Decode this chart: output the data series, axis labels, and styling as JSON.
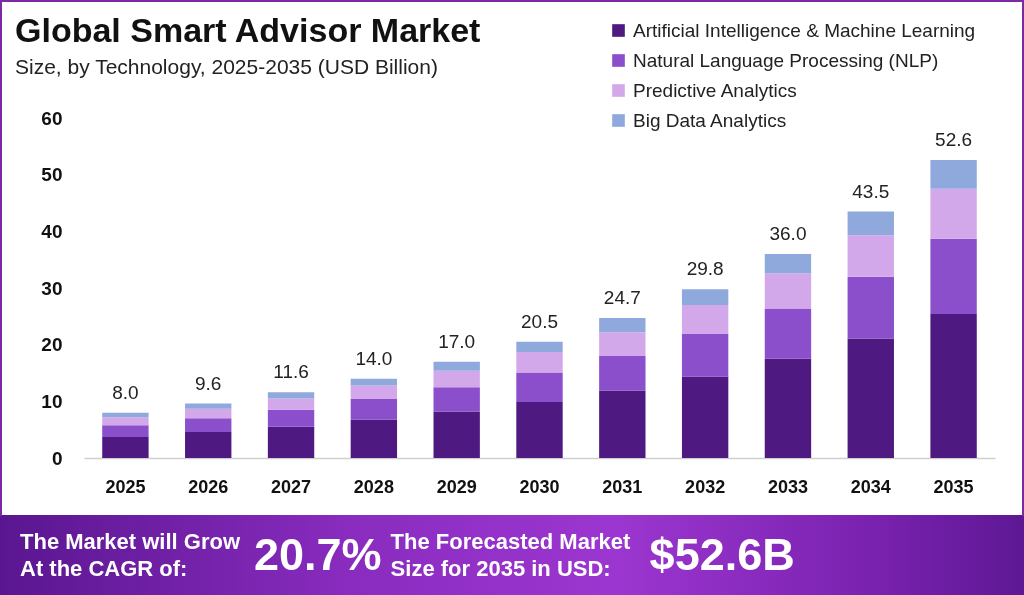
{
  "chart_data": {
    "type": "bar",
    "title": "Global Smart Advisor Market",
    "subtitle": "Size, by Technology, 2025-2035 (USD Billion)",
    "categories": [
      "2025",
      "2026",
      "2027",
      "2028",
      "2029",
      "2030",
      "2031",
      "2032",
      "2033",
      "2034",
      "2035"
    ],
    "series": [
      {
        "name": "Artificial Intelligence & Machine Learning",
        "color": "#4e1a82",
        "values": [
          3.7,
          4.6,
          5.5,
          6.8,
          8.2,
          9.9,
          11.9,
          14.4,
          17.5,
          21.1,
          25.4
        ]
      },
      {
        "name": "Natural Language Processing (NLP)",
        "color": "#8b4fcb",
        "values": [
          2.1,
          2.4,
          3.0,
          3.6,
          4.3,
          5.2,
          6.1,
          7.5,
          8.9,
          10.9,
          13.3
        ]
      },
      {
        "name": "Predictive Analytics",
        "color": "#d3a8ea",
        "values": [
          1.4,
          1.7,
          2.0,
          2.4,
          2.9,
          3.6,
          4.2,
          5.1,
          6.2,
          7.3,
          8.8
        ]
      },
      {
        "name": "Big Data Analytics",
        "color": "#8fa9dc",
        "values": [
          0.8,
          0.9,
          1.1,
          1.2,
          1.6,
          1.8,
          2.5,
          2.8,
          3.4,
          4.2,
          5.1
        ]
      }
    ],
    "stacked": true,
    "totals": [
      "8.0",
      "9.6",
      "11.6",
      "14.0",
      "17.0",
      "20.5",
      "24.7",
      "29.8",
      "36.0",
      "43.5",
      "52.6"
    ],
    "ylim": [
      0,
      60
    ],
    "yticks": [
      0,
      10,
      20,
      30,
      40,
      50,
      60
    ],
    "legend": "top right",
    "annotations": [
      "The Market will Grow At the CAGR of:",
      "20.7%",
      "The Forecasted Market Size for 2035 in USD:",
      "$52.6B"
    ]
  }
}
